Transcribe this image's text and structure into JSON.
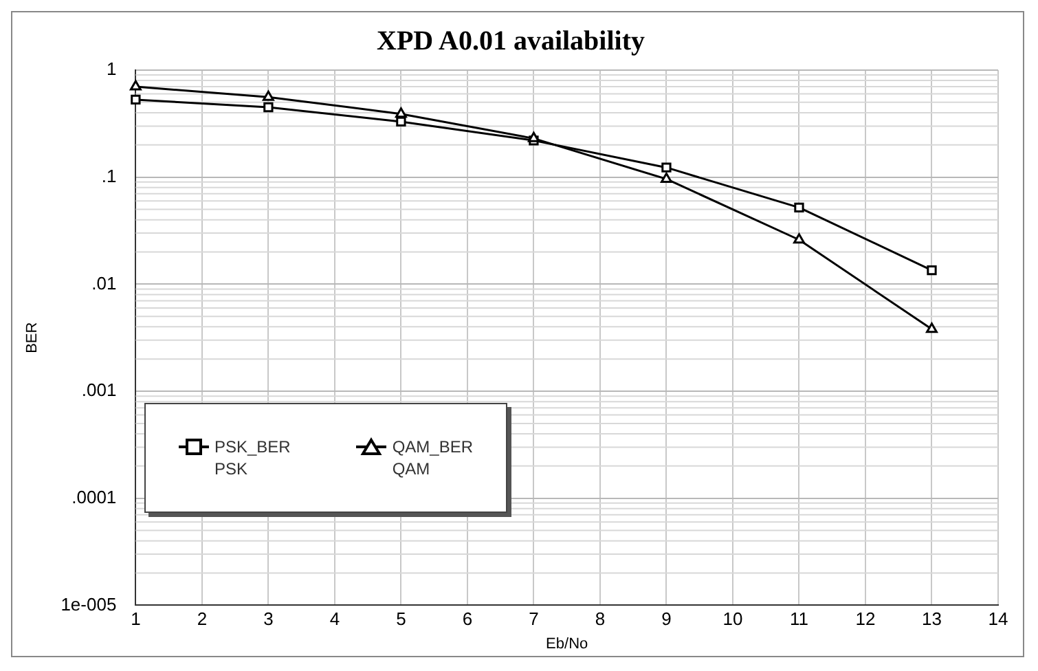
{
  "chart_data": {
    "type": "line",
    "title": "XPD A0.01 availability",
    "xlabel": "Eb/No",
    "ylabel": "BER",
    "x": [
      1,
      3,
      5,
      7,
      9,
      11,
      13
    ],
    "series": [
      {
        "name": "PSK_BER\nPSK",
        "color": "#000000",
        "marker": "square",
        "values": [
          0.53,
          0.45,
          0.33,
          0.22,
          0.123,
          0.052,
          0.0135
        ]
      },
      {
        "name": "QAM_BER\nQAM",
        "color": "#000000",
        "marker": "triangle",
        "values": [
          0.7,
          0.56,
          0.39,
          0.23,
          0.096,
          0.026,
          0.0038
        ]
      }
    ],
    "xlim": [
      1,
      14
    ],
    "xticks": [
      1,
      2,
      3,
      4,
      5,
      6,
      7,
      8,
      9,
      10,
      11,
      12,
      13,
      14
    ],
    "ylim": [
      1e-05,
      1
    ],
    "yticks": [
      {
        "value": 1e-05,
        "label": "1e-005"
      },
      {
        "value": 0.0001,
        "label": ".0001"
      },
      {
        "value": 0.001,
        "label": ".001"
      },
      {
        "value": 0.01,
        "label": ".01"
      },
      {
        "value": 0.1,
        "label": ".1"
      },
      {
        "value": 1,
        "label": "1"
      }
    ],
    "log": "y",
    "grid": true,
    "legend": "bottom left",
    "line_style": "solid"
  }
}
